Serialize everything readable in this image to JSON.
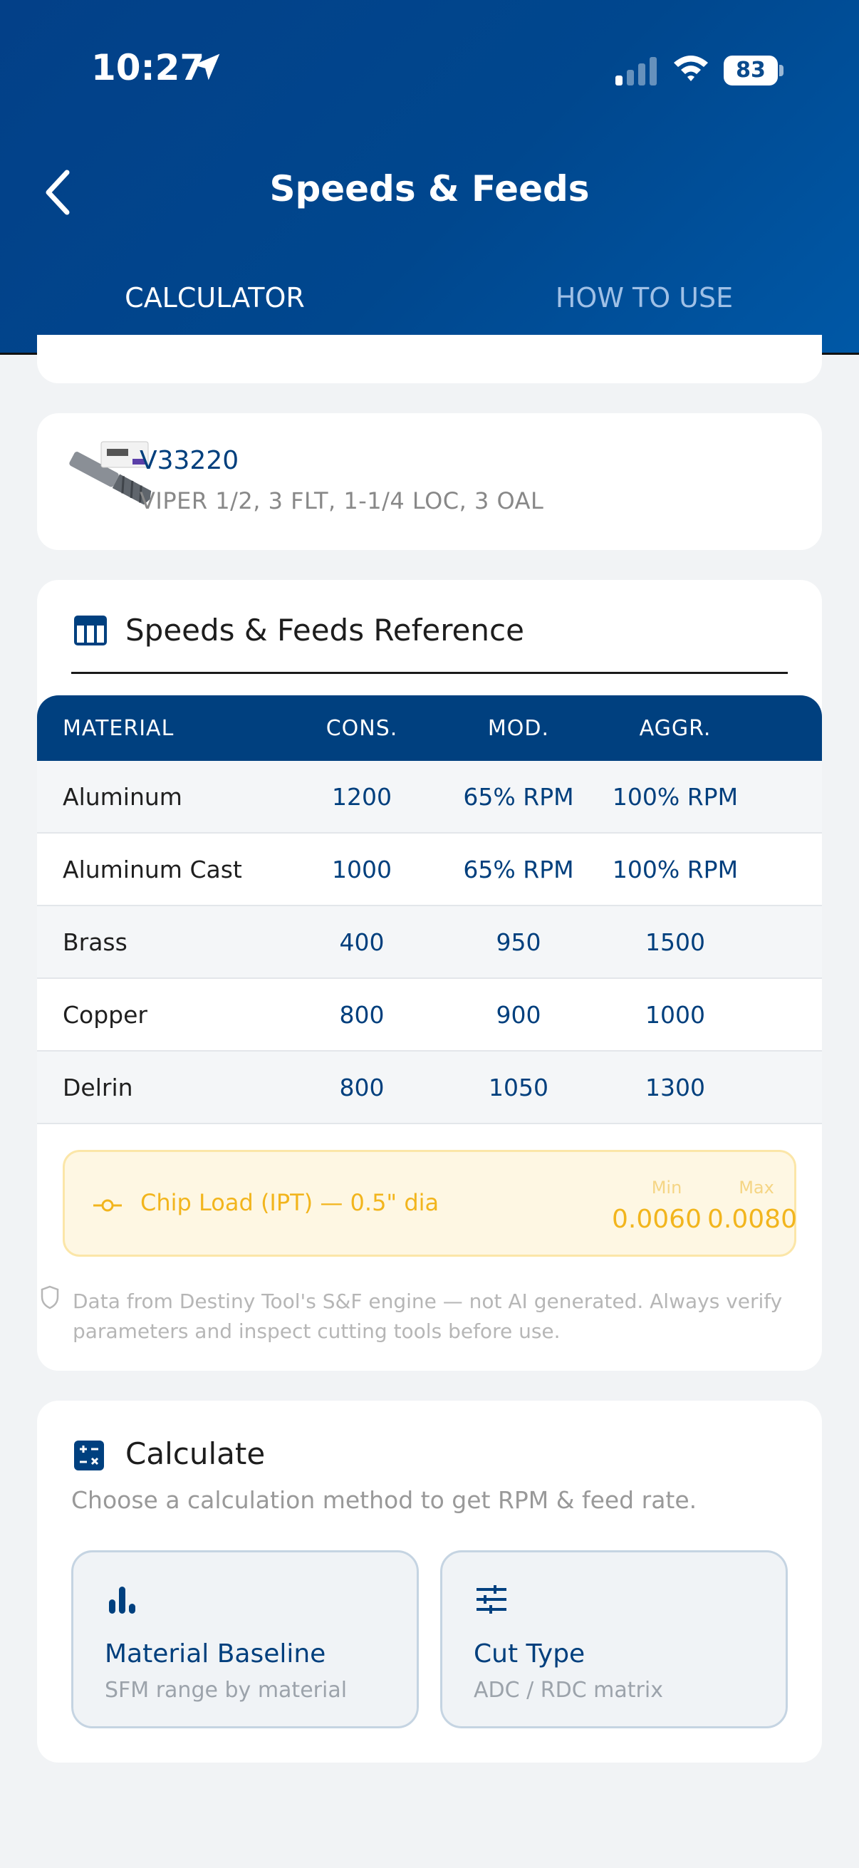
{
  "status_bar": {
    "time": "10:27",
    "battery": "83"
  },
  "header": {
    "title": "Speeds & Feeds"
  },
  "tabs": [
    {
      "label": "CALCULATOR",
      "active": true
    },
    {
      "label": "HOW TO USE",
      "active": false
    }
  ],
  "product": {
    "sku": "V33220",
    "description": "VIPER 1/2, 3 FLT, 1-1/4 LOC, 3 OAL"
  },
  "reference": {
    "title": "Speeds & Feeds Reference",
    "columns": [
      "MATERIAL",
      "CONS.",
      "MOD.",
      "AGGR."
    ],
    "rows": [
      {
        "material": "Aluminum",
        "cons": "1200",
        "mod": "65% RPM",
        "aggr": "100% RPM"
      },
      {
        "material": "Aluminum Cast",
        "cons": "1000",
        "mod": "65% RPM",
        "aggr": "100% RPM"
      },
      {
        "material": "Brass",
        "cons": "400",
        "mod": "950",
        "aggr": "1500"
      },
      {
        "material": "Copper",
        "cons": "800",
        "mod": "900",
        "aggr": "1000"
      },
      {
        "material": "Delrin",
        "cons": "800",
        "mod": "1050",
        "aggr": "1300"
      }
    ],
    "chip_load": {
      "label": "Chip Load (IPT) — 0.5\" dia",
      "min_label": "Min",
      "max_label": "Max",
      "min": "0.0060",
      "max": "0.0080"
    },
    "disclaimer": "Data from Destiny Tool's S&F engine — not AI generated. Always verify parameters and inspect cutting tools before use."
  },
  "calculate": {
    "title": "Calculate",
    "subtitle": "Choose a calculation method to get RPM & feed rate.",
    "options": [
      {
        "title": "Material Baseline",
        "subtitle": "SFM range by material",
        "icon": "bar-chart-icon"
      },
      {
        "title": "Cut Type",
        "subtitle": "ADC / RDC matrix",
        "icon": "sliders-icon"
      }
    ]
  },
  "colors": {
    "primary": "#00407f",
    "accent": "#f4b81c",
    "chip_text": "#f2b51d"
  }
}
